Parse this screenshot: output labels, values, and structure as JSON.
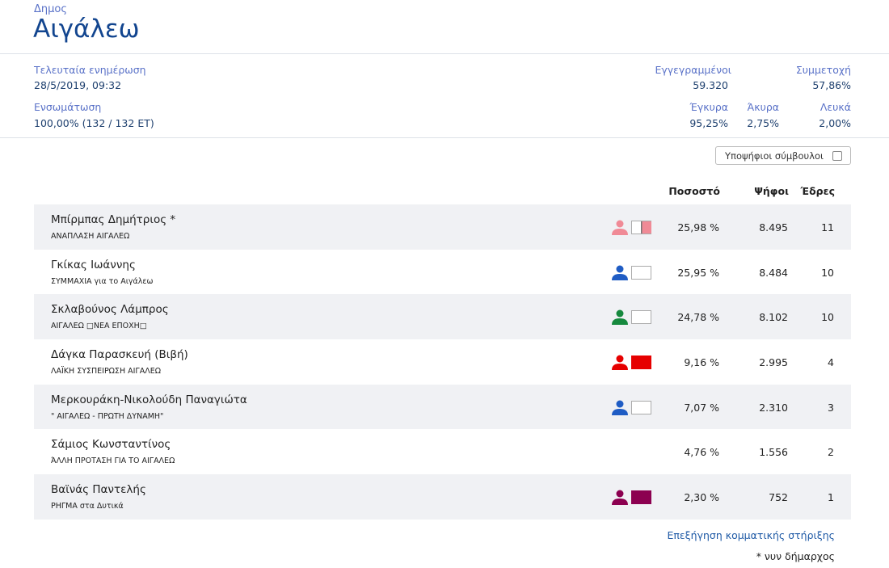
{
  "header": {
    "kicker": "Δημος",
    "title": "Αιγάλεω"
  },
  "stats": {
    "last_update_label": "Τελευταία ενημέρωση",
    "last_update": "28/5/2019, 09:32",
    "integration_label": "Ενσωμάτωση",
    "integration": "100,00% (132 / 132 ΕΤ)",
    "registered_label": "Εγγεγραμμένοι",
    "registered": "59.320",
    "turnout_label": "Συμμετοχή",
    "turnout": "57,86%",
    "valid_label": "Έγκυρα",
    "valid": "95,25%",
    "invalid_label": "Άκυρα",
    "invalid": "2,75%",
    "blank_label": "Λευκά",
    "blank": "2,00%"
  },
  "candidates_toggle": {
    "label": "Υποψήφιοι σύμβουλοι",
    "checked": false
  },
  "table": {
    "headers": {
      "percent": "Ποσοστό",
      "votes": "Ψήφοι",
      "seats": "Έδρες"
    },
    "rows": [
      {
        "name": "Μπίρμπας Δημήτριος *",
        "party": "ΑΝΑΠΛΑΣΗ ΑΙΓΑΛΕΩ",
        "percent": "25,98 %",
        "votes": "8.495",
        "seats": "11",
        "color": "#f08a96",
        "box": "split"
      },
      {
        "name": "Γκίκας Ιωάννης",
        "party": "ΣΥΜΜΑΧΙΑ για το Αιγάλεω",
        "percent": "25,95 %",
        "votes": "8.484",
        "seats": "10",
        "color": "#1f5cc4",
        "box": "empty"
      },
      {
        "name": "Σκλαβούνος Λάμπρος",
        "party": "ΑΙΓΑΛΕΩ □ΝΕΑ ΕΠΟΧΗ□",
        "percent": "24,78 %",
        "votes": "8.102",
        "seats": "10",
        "color": "#16893e",
        "box": "empty"
      },
      {
        "name": "Δάγκα Παρασκευή (Βιβή)",
        "party": "ΛΑΪΚΗ ΣΥΣΠΕΙΡΩΣΗ ΑΙΓΑΛΕΩ",
        "percent": "9,16 %",
        "votes": "2.995",
        "seats": "4",
        "color": "#e60000",
        "box": "full"
      },
      {
        "name": "Μερκουράκη-Νικολούδη Παναγιώτα",
        "party": "\" ΑΙΓΑΛΕΩ - ΠΡΩΤΗ ΔΥΝΑΜΗ\"",
        "percent": "7,07 %",
        "votes": "2.310",
        "seats": "3",
        "color": "#1f5cc4",
        "box": "empty"
      },
      {
        "name": "Σάμιος Κωνσταντίνος",
        "party": "ΆΛΛΗ ΠΡΟΤΑΣΗ ΓΙΑ ΤΟ ΑΙΓΑΛΕΩ",
        "percent": "4,76 %",
        "votes": "1.556",
        "seats": "2",
        "color": "",
        "box": "none"
      },
      {
        "name": "Βαϊνάς Παντελής",
        "party": "ΡΗΓΜΑ στα Δυτικά",
        "percent": "2,30 %",
        "votes": "752",
        "seats": "1",
        "color": "#8c0050",
        "box": "full"
      }
    ]
  },
  "footer": {
    "link": "Επεξήγηση κομματικής στήριξης",
    "note": "* νυν δήμαρχος"
  }
}
